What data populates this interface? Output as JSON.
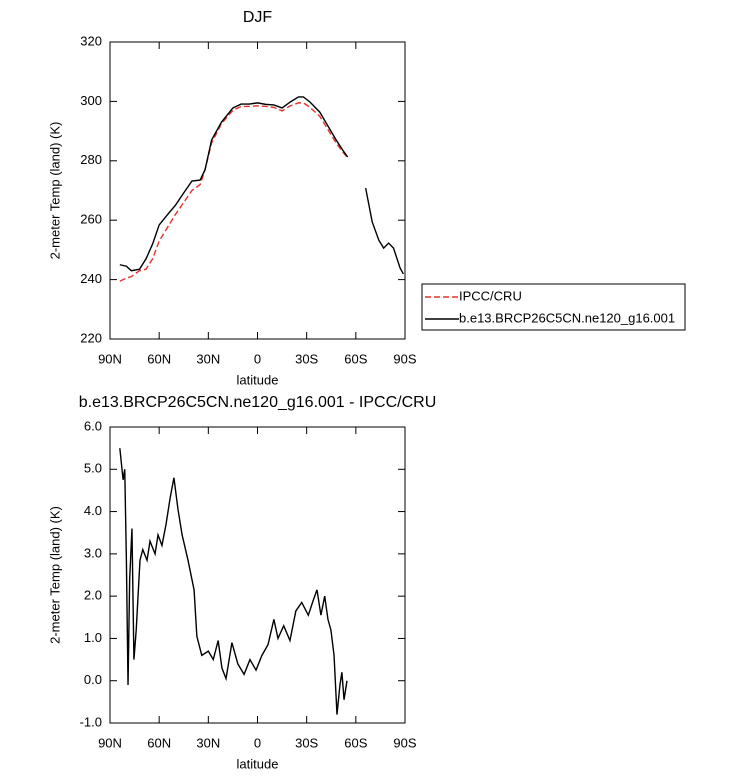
{
  "chart_data": [
    {
      "type": "line",
      "title": "DJF",
      "xlabel": "latitude",
      "ylabel": "2-meter Temp (land) (K)",
      "x": [
        84,
        80,
        77,
        72,
        68,
        64,
        60,
        55,
        50,
        45,
        40,
        35,
        32,
        28,
        22,
        15,
        10,
        5,
        0,
        -5,
        -10,
        -15,
        -20,
        -25,
        -28,
        -32,
        -38,
        -43,
        -48,
        -52,
        -55,
        -60,
        -66,
        -70,
        -74,
        -77,
        -80,
        -83,
        -87,
        -89
      ],
      "series": [
        {
          "name": "IPCC/CRU",
          "color": "#e8302a",
          "style": "dashed",
          "values": [
            239.5,
            240.5,
            241,
            243,
            243.5,
            247,
            253,
            257.5,
            262,
            266,
            270,
            272,
            277,
            286,
            292.5,
            297,
            298.3,
            298.3,
            298.5,
            298.3,
            298,
            296.8,
            298.5,
            299.5,
            299.5,
            298,
            295,
            290.5,
            286,
            283,
            281,
            null,
            null,
            null,
            null,
            null,
            null,
            null,
            null,
            null
          ]
        },
        {
          "name": "b.e13.BRCP26C5CN.ne120_g16.001",
          "color": "#000000",
          "style": "solid",
          "values": [
            245,
            244.5,
            243,
            243.5,
            247,
            252,
            258.4,
            261.8,
            265.1,
            269.2,
            273.2,
            273.5,
            277,
            287,
            293,
            297.8,
            299.1,
            299.1,
            299.5,
            299,
            298.8,
            297.8,
            299.8,
            301.5,
            301.5,
            299.8,
            296.4,
            291.7,
            287,
            283.6,
            281.3,
            null,
            270.8,
            259.4,
            253.3,
            250.6,
            252.3,
            250.6,
            243.9,
            241.9
          ]
        }
      ],
      "xlim": [
        90,
        -90
      ],
      "xticks": [
        {
          "value": 90,
          "label": "90N"
        },
        {
          "value": 60,
          "label": "60N"
        },
        {
          "value": 30,
          "label": "30N"
        },
        0,
        {
          "value": -30,
          "label": "30S"
        },
        {
          "value": -60,
          "label": "60S"
        },
        {
          "value": -90,
          "label": "90S"
        }
      ],
      "ylim": [
        220,
        320
      ],
      "yticks": [
        220,
        240,
        260,
        280,
        300,
        320
      ],
      "legend": "outside-right"
    },
    {
      "type": "line",
      "title": "b.e13.BRCP26C5CN.ne120_g16.001 - IPCC/CRU",
      "xlabel": "latitude",
      "ylabel": "2-meter Temp (land) (K)",
      "x": [
        84,
        82,
        81,
        80,
        79,
        78,
        76.6,
        75.4,
        74,
        71.7,
        70,
        67.4,
        65.6,
        62.5,
        60.7,
        58.3,
        55.8,
        53.4,
        51,
        48.5,
        46,
        42.4,
        38.7,
        37,
        34,
        30,
        27,
        24,
        21.7,
        19.2,
        15.6,
        12,
        8.2,
        4.6,
        0.9,
        -2.7,
        -6.4,
        -10,
        -12.5,
        -16,
        -19.8,
        -23.4,
        -27,
        -31,
        -34,
        -36.3,
        -38.7,
        -41,
        -43,
        -44.8,
        -46.7,
        -48.5,
        -50.3,
        -51.5,
        -52.8,
        -54.6
      ],
      "values": [
        5.5,
        4.75,
        5.0,
        2.85,
        -0.1,
        2.4,
        3.6,
        0.5,
        1.2,
        2.85,
        3.1,
        2.85,
        3.3,
        3.0,
        3.45,
        3.2,
        3.7,
        4.3,
        4.8,
        4.05,
        3.45,
        2.85,
        2.15,
        1.05,
        0.6,
        0.7,
        0.5,
        0.95,
        0.3,
        0.05,
        0.9,
        0.4,
        0.15,
        0.5,
        0.25,
        0.6,
        0.85,
        1.45,
        1.0,
        1.3,
        0.95,
        1.65,
        1.85,
        1.55,
        1.9,
        2.15,
        1.55,
        2.0,
        1.45,
        1.2,
        0.6,
        -0.8,
        -0.1,
        0.2,
        -0.45,
        0.0
      ],
      "color": "#000000",
      "xlim": [
        90,
        -90
      ],
      "xticks": [
        {
          "value": 90,
          "label": "90N"
        },
        {
          "value": 60,
          "label": "60N"
        },
        {
          "value": 30,
          "label": "30N"
        },
        0,
        {
          "value": -30,
          "label": "30S"
        },
        {
          "value": -60,
          "label": "60S"
        },
        {
          "value": -90,
          "label": "90S"
        }
      ],
      "ylim": [
        -1,
        6
      ],
      "yticks": [
        {
          "value": -1,
          "label": "-1.0"
        },
        {
          "value": 0,
          "label": "0.0"
        },
        {
          "value": 1,
          "label": "1.0"
        },
        {
          "value": 2,
          "label": "2.0"
        },
        {
          "value": 3,
          "label": "3.0"
        },
        {
          "value": 4,
          "label": "4.0"
        },
        {
          "value": 5,
          "label": "5.0"
        },
        {
          "value": 6,
          "label": "6.0"
        }
      ]
    }
  ]
}
